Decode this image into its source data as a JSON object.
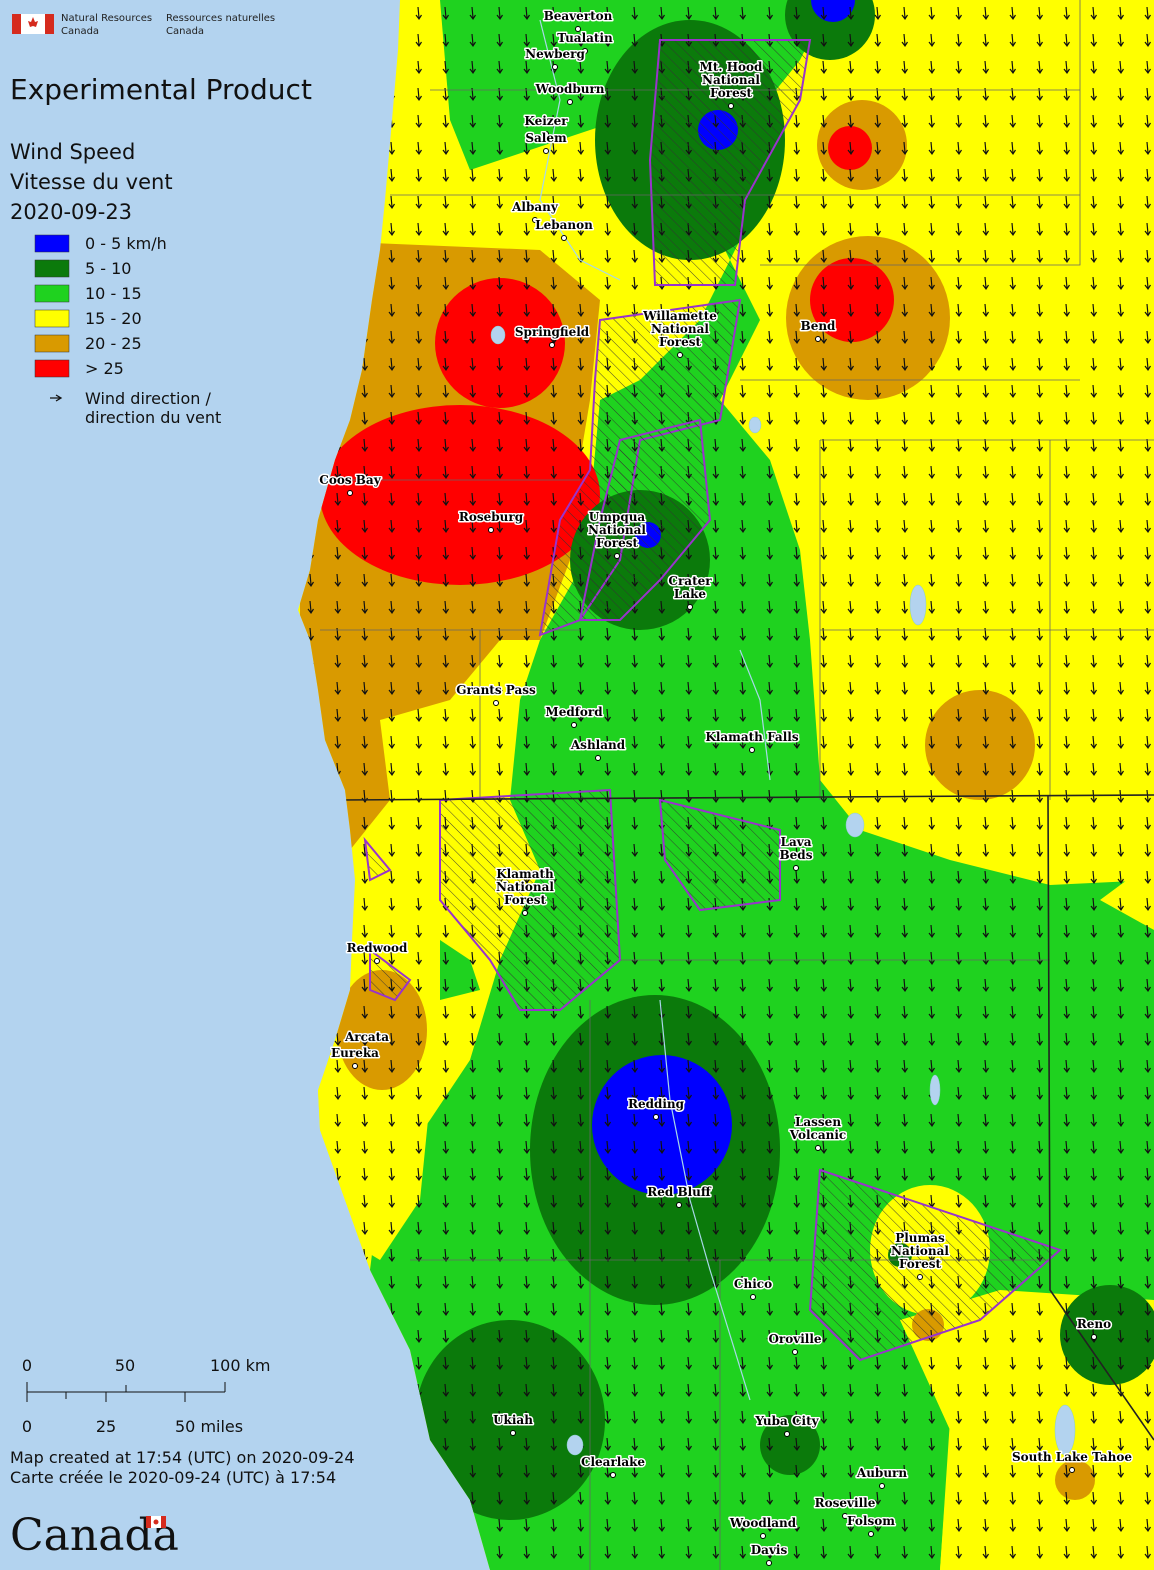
{
  "header": {
    "org_en": [
      "Natural Resources",
      "Canada"
    ],
    "org_fr": [
      "Ressources naturelles",
      "Canada"
    ]
  },
  "title": "Experimental Product",
  "legend": {
    "title": [
      "Wind Speed",
      "Vitesse du vent",
      "2020-09-23"
    ],
    "items": [
      {
        "label": "0 - 5 km/h",
        "color": "#0000ff"
      },
      {
        "label": "5 - 10",
        "color": "#0b7a0b"
      },
      {
        "label": "10 - 15",
        "color": "#1fd21f"
      },
      {
        "label": "15 - 20",
        "color": "#ffff00"
      },
      {
        "label": "20 - 25",
        "color": "#d99a00"
      },
      {
        "label": "> 25",
        "color": "#ff0000"
      }
    ],
    "arrow_label": [
      "Wind direction /",
      "direction du vent"
    ]
  },
  "scale": {
    "km": [
      "0",
      "50",
      "100 km"
    ],
    "miles": [
      "0",
      "25",
      "50 miles"
    ]
  },
  "footer": [
    "Map created at 17:54 (UTC) on 2020-09-24",
    "Carte créée le 2020-09-24 (UTC) à 17:54"
  ],
  "wordmark": "Canada",
  "places": [
    {
      "lines": [
        "Beaverton"
      ]
    },
    {
      "lines": [
        "Tualatin"
      ]
    },
    {
      "lines": [
        "Newberg"
      ]
    },
    {
      "lines": [
        "Woodburn"
      ]
    },
    {
      "lines": [
        "Keizer"
      ]
    },
    {
      "lines": [
        "Salem"
      ]
    },
    {
      "lines": [
        "Albany"
      ]
    },
    {
      "lines": [
        "Lebanon"
      ]
    },
    {
      "lines": [
        "Mt. Hood",
        "National",
        "Forest"
      ]
    },
    {
      "lines": [
        "Springfield"
      ]
    },
    {
      "lines": [
        "Willamette",
        "National",
        "Forest"
      ]
    },
    {
      "lines": [
        "Bend"
      ]
    },
    {
      "lines": [
        "Coos Bay"
      ]
    },
    {
      "lines": [
        "Roseburg"
      ]
    },
    {
      "lines": [
        "Umpqua",
        "National",
        "Forest"
      ]
    },
    {
      "lines": [
        "Crater",
        "Lake"
      ]
    },
    {
      "lines": [
        "Grants Pass"
      ]
    },
    {
      "lines": [
        "Medford"
      ]
    },
    {
      "lines": [
        "Ashland"
      ]
    },
    {
      "lines": [
        "Klamath Falls"
      ]
    },
    {
      "lines": [
        "Lava",
        "Beds"
      ]
    },
    {
      "lines": [
        "Klamath",
        "National",
        "Forest"
      ]
    },
    {
      "lines": [
        "Redwood"
      ]
    },
    {
      "lines": [
        "Arcata"
      ]
    },
    {
      "lines": [
        "Eureka"
      ]
    },
    {
      "lines": [
        "Redding"
      ]
    },
    {
      "lines": [
        "Lassen",
        "Volcanic"
      ]
    },
    {
      "lines": [
        "Red Bluff"
      ]
    },
    {
      "lines": [
        "Plumas",
        "National",
        "Forest"
      ]
    },
    {
      "lines": [
        "Chico"
      ]
    },
    {
      "lines": [
        "Oroville"
      ]
    },
    {
      "lines": [
        "Reno"
      ]
    },
    {
      "lines": [
        "Ukiah"
      ]
    },
    {
      "lines": [
        "Yuba City"
      ]
    },
    {
      "lines": [
        "Clearlake"
      ]
    },
    {
      "lines": [
        "Auburn"
      ]
    },
    {
      "lines": [
        "South Lake Tahoe"
      ]
    },
    {
      "lines": [
        "Roseville"
      ]
    },
    {
      "lines": [
        "Folsom"
      ]
    },
    {
      "lines": [
        "Woodland"
      ]
    },
    {
      "lines": [
        "Davis"
      ]
    }
  ]
}
